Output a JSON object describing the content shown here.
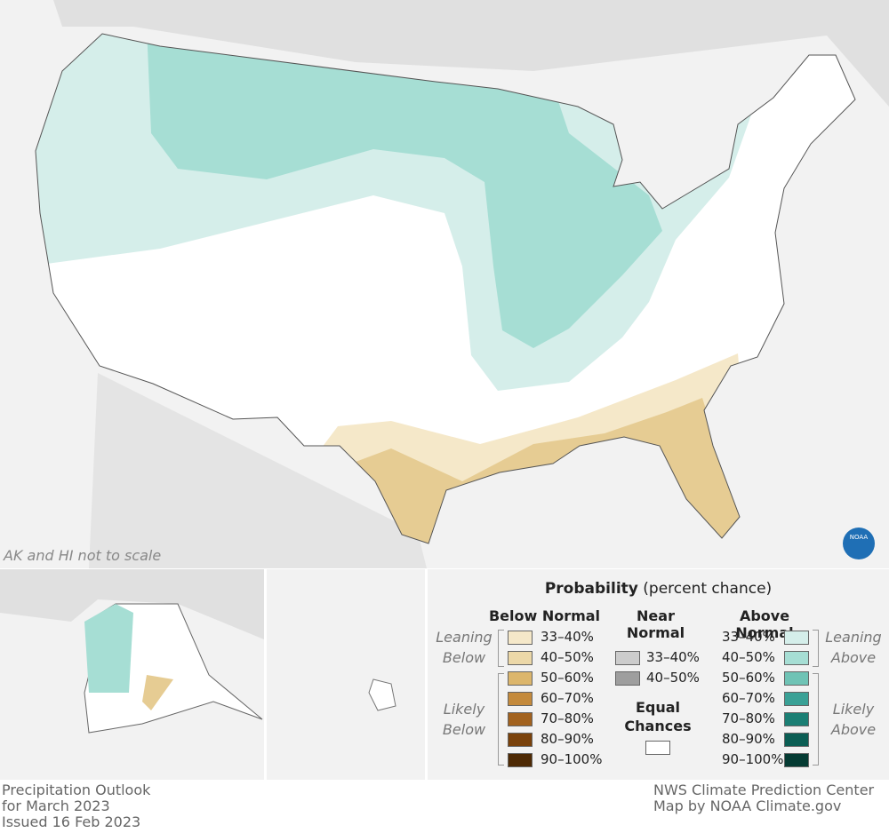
{
  "map": {
    "note": "AK and HI not to scale"
  },
  "logo": "NOAA",
  "legend": {
    "title": "Probability",
    "subtitle": "(percent chance)",
    "below": {
      "heading": "Below Normal",
      "leaning": "Leaning Below",
      "likely": "Likely Below",
      "items": [
        {
          "label": "33–40%",
          "color": "#f5e8c9"
        },
        {
          "label": "40–50%",
          "color": "#ecd8a8"
        },
        {
          "label": "50–60%",
          "color": "#dcb66c"
        },
        {
          "label": "60–70%",
          "color": "#c48a3c"
        },
        {
          "label": "70–80%",
          "color": "#a2621e"
        },
        {
          "label": "80–90%",
          "color": "#7a420b"
        },
        {
          "label": "90–100%",
          "color": "#4e2a05"
        }
      ]
    },
    "near": {
      "heading": "Near Normal",
      "items": [
        {
          "label": "33–40%",
          "color": "#cccccc"
        },
        {
          "label": "40–50%",
          "color": "#9e9e9e"
        }
      ]
    },
    "equal_chances": "Equal Chances",
    "above": {
      "heading": "Above Normal",
      "leaning": "Leaning Above",
      "likely": "Likely Above",
      "items": [
        {
          "label": "33–40%",
          "color": "#d5eeea"
        },
        {
          "label": "40–50%",
          "color": "#a6ded4"
        },
        {
          "label": "50–60%",
          "color": "#6fc3b5"
        },
        {
          "label": "60–70%",
          "color": "#3aa196"
        },
        {
          "label": "70–80%",
          "color": "#1b7f74"
        },
        {
          "label": "80–90%",
          "color": "#0b5e54"
        },
        {
          "label": "90–100%",
          "color": "#053b33"
        }
      ]
    }
  },
  "footer": {
    "left": [
      "Precipitation Outlook",
      "for March 2023",
      "Issued 16 Feb 2023"
    ],
    "right": [
      "NWS Climate Prediction Center",
      "Map by NOAA Climate.gov"
    ]
  }
}
